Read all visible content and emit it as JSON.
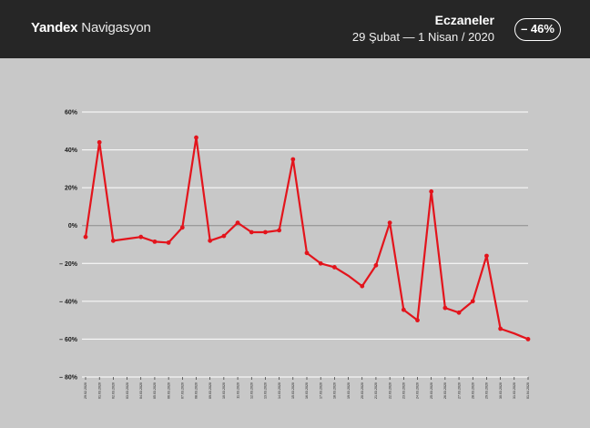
{
  "header": {
    "brand_bold": "Yandex",
    "brand_light": " Navigasyon",
    "title": "Eczaneler",
    "subtitle": "29 Şubat  —  1 Nisan / 2020",
    "badge": "– 46%"
  },
  "colors": {
    "header_bg": "#262626",
    "plot_bg": "#c8c8c8",
    "line": "#e3141c",
    "grid": "#ffffff"
  },
  "chart_data": {
    "type": "line",
    "x": [
      "29.02.2020",
      "01.03.2020",
      "02.03.2020",
      "03.03.2020",
      "04.03.2020",
      "05.03.2020",
      "06.03.2020",
      "07.03.2020",
      "08.03.2020",
      "09.03.2020",
      "10.03.2020",
      "11.03.2020",
      "12.03.2020",
      "13.03.2020",
      "14.03.2020",
      "15.03.2020",
      "16.03.2020",
      "17.03.2020",
      "18.03.2020",
      "19.03.2020",
      "20.03.2020",
      "21.03.2020",
      "22.03.2020",
      "23.03.2020",
      "24.03.2020",
      "25.03.2020",
      "26.03.2020",
      "27.03.2020",
      "28.03.2020",
      "29.03.2020",
      "30.03.2020",
      "31.03.2020",
      "01.04.2020"
    ],
    "values": [
      -6,
      44,
      -8,
      -7,
      -6,
      -8.5,
      -9,
      -1,
      46.5,
      -8,
      -5.5,
      1.5,
      -3.5,
      -3.5,
      -2.5,
      35,
      -14.5,
      -20,
      -22,
      -26.5,
      -32,
      -21,
      1.5,
      -44.5,
      -50,
      18,
      -43.5,
      -46,
      -40,
      -16,
      -54.5,
      -57,
      -60
    ],
    "marked": [
      true,
      true,
      true,
      false,
      true,
      true,
      true,
      true,
      true,
      true,
      true,
      true,
      true,
      true,
      true,
      true,
      true,
      true,
      true,
      false,
      true,
      true,
      true,
      true,
      true,
      true,
      true,
      true,
      true,
      true,
      true,
      false,
      true
    ],
    "y_ticks": [
      "60%",
      "40%",
      "20%",
      "0%",
      "– 20%",
      "– 40%",
      "– 60%",
      "– 80%"
    ],
    "y_tick_values": [
      60,
      40,
      20,
      0,
      -20,
      -40,
      -60,
      -80
    ],
    "ylim": [
      -80,
      60
    ],
    "grid": true,
    "zero_line": true
  }
}
